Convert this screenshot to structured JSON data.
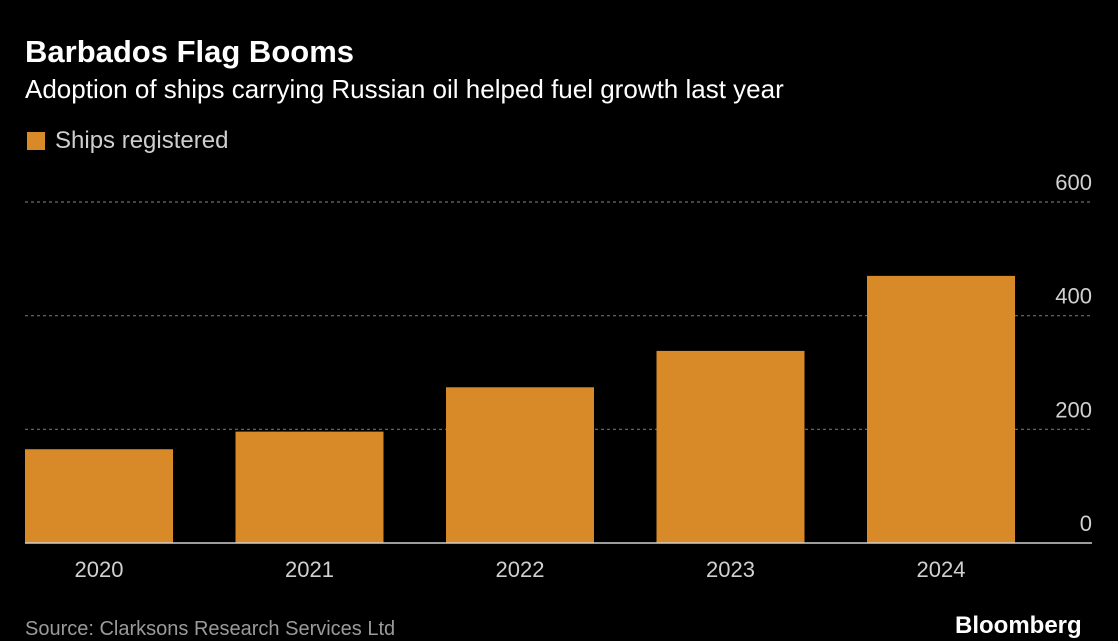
{
  "header": {
    "title": "Barbados Flag Booms",
    "subtitle": "Adoption of ships carrying Russian oil helped fuel growth last year"
  },
  "footer": {
    "source": "Source: Clarksons Research Services Ltd",
    "brand": "Bloomberg"
  },
  "colors": {
    "background": "#000000",
    "bar": "#D98A28",
    "grid": "#6e6e6e",
    "axis": "#d0d0d0",
    "tick_text": "#d0d0d0"
  },
  "chart_data": {
    "type": "bar",
    "categories": [
      "2020",
      "2021",
      "2022",
      "2023",
      "2024"
    ],
    "series": [
      {
        "name": "Ships registered",
        "values": [
          165,
          196,
          274,
          338,
          470
        ]
      }
    ],
    "ylim": [
      0,
      600
    ],
    "yticks": [
      0,
      200,
      400,
      600
    ],
    "y_axis_side": "right",
    "grid": true,
    "legend_position": "top-left"
  }
}
